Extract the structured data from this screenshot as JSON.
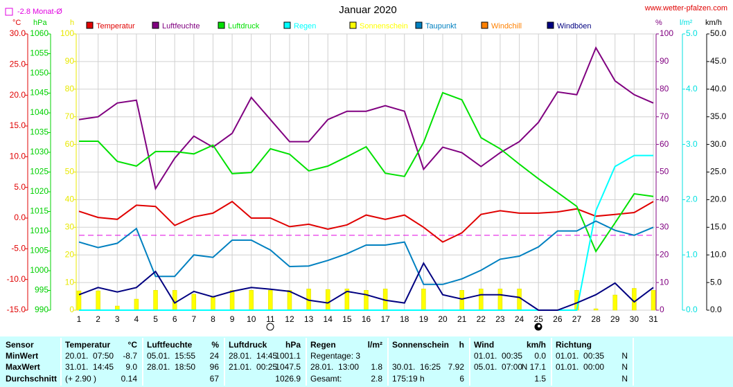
{
  "chart_data": {
    "type": "line",
    "title": "Januar 2020",
    "source": "www.wetter-pfalzen.com",
    "mean": {
      "value": -2.8,
      "label": "-2.8 Monat-Ø",
      "color": "#e000e0",
      "axis": 0
    },
    "categories": [
      1,
      2,
      3,
      4,
      5,
      6,
      7,
      8,
      9,
      10,
      11,
      12,
      13,
      14,
      15,
      16,
      17,
      18,
      19,
      20,
      21,
      22,
      23,
      24,
      25,
      26,
      27,
      28,
      29,
      30,
      31
    ],
    "grid": true,
    "axes": [
      {
        "unit": "°C",
        "color": "#e00000",
        "side": "left",
        "lim": [
          -15,
          30
        ],
        "ticks": [
          {
            "value": -15,
            "label": "-15.0"
          },
          {
            "value": -10,
            "label": "-10.0"
          },
          {
            "value": -5,
            "label": "-5.0"
          },
          {
            "value": 0,
            "label": "0.0"
          },
          {
            "value": 5,
            "label": "5.0"
          },
          {
            "value": 10,
            "label": "10.0"
          },
          {
            "value": 15,
            "label": "15.0"
          },
          {
            "value": 20,
            "label": "20.0"
          },
          {
            "value": 25,
            "label": "25.0"
          },
          {
            "value": 30,
            "label": "30.0"
          }
        ]
      },
      {
        "unit": "hPa",
        "color": "#00d000",
        "side": "left",
        "lim": [
          990,
          1060
        ],
        "ticks": [
          990,
          995,
          1000,
          1005,
          1010,
          1015,
          1020,
          1025,
          1030,
          1035,
          1040,
          1045,
          1050,
          1055,
          1060
        ]
      },
      {
        "unit": "h",
        "color": "#e8e800",
        "side": "left",
        "lim": [
          0,
          100
        ],
        "ticks": [
          0,
          10,
          20,
          30,
          40,
          50,
          60,
          70,
          80,
          90,
          100
        ]
      },
      {
        "unit": "%",
        "color": "#800080",
        "side": "right",
        "lim": [
          0,
          100
        ],
        "grid": true,
        "ticks": [
          0,
          10,
          20,
          30,
          40,
          50,
          60,
          70,
          80,
          90,
          100
        ]
      },
      {
        "unit": "l/m²",
        "color": "#00e0e0",
        "side": "right",
        "lim": [
          0,
          5
        ],
        "ticks": [
          {
            "value": 0,
            "label": "0.0"
          },
          {
            "value": 1,
            "label": "1.0"
          },
          {
            "value": 2,
            "label": "2.0"
          },
          {
            "value": 3,
            "label": "3.0"
          },
          {
            "value": 4,
            "label": "4.0"
          },
          {
            "value": 5,
            "label": "5.0"
          }
        ]
      },
      {
        "unit": "km/h",
        "color": "#000000",
        "side": "right",
        "lim": [
          0,
          50
        ],
        "ticks": [
          {
            "value": 0,
            "label": "0.0"
          },
          {
            "value": 5,
            "label": "5.0"
          },
          {
            "value": 10,
            "label": "10.0"
          },
          {
            "value": 15,
            "label": "15.0"
          },
          {
            "value": 20,
            "label": "20.0"
          },
          {
            "value": 25,
            "label": "25.0"
          },
          {
            "value": 30,
            "label": "30.0"
          },
          {
            "value": 35,
            "label": "35.0"
          },
          {
            "value": 40,
            "label": "40.0"
          },
          {
            "value": 45,
            "label": "45.0"
          },
          {
            "value": 50,
            "label": "50.0"
          }
        ]
      }
    ],
    "series": [
      {
        "name": "Temperatur",
        "color": "#e00000",
        "axis": 0,
        "type": "line",
        "values": [
          1.1,
          0.1,
          -0.2,
          2.1,
          1.9,
          -1.2,
          0.2,
          0.8,
          2.7,
          0.0,
          0.0,
          -1.4,
          -1.0,
          -1.8,
          -1.1,
          0.5,
          -0.2,
          0.5,
          -1.5,
          -3.9,
          -2.4,
          0.6,
          1.2,
          0.8,
          0.8,
          1.0,
          1.5,
          0.3,
          0.6,
          0.9,
          2.7
        ]
      },
      {
        "name": "Luftfeuchte",
        "color": "#800080",
        "axis": 3,
        "type": "line",
        "values": [
          69,
          70,
          75,
          76,
          44,
          55,
          63,
          59,
          64,
          77,
          69,
          61,
          61,
          69,
          72,
          72,
          74,
          72,
          51,
          59,
          57,
          52,
          57,
          61,
          68,
          79,
          78,
          95,
          83,
          78,
          75
        ]
      },
      {
        "name": "Luftdruck",
        "color": "#00e000",
        "axis": 1,
        "type": "line",
        "values": [
          1032.8,
          1032.8,
          1027.7,
          1026.5,
          1030.2,
          1030.2,
          1029.6,
          1031.8,
          1024.6,
          1024.9,
          1030.9,
          1029.5,
          1025.3,
          1026.5,
          1028.9,
          1031.4,
          1024.7,
          1023.9,
          1032.5,
          1045.1,
          1043.3,
          1033.7,
          1030.9,
          1027.0,
          1023.3,
          1019.8,
          1016.3,
          1004.9,
          1012.1,
          1019.5,
          1018.8
        ]
      },
      {
        "name": "Regen",
        "color": "#00ffff",
        "axis": 4,
        "type": "line",
        "values": [
          0,
          0,
          0,
          0,
          0,
          0,
          0,
          0,
          0,
          0,
          0,
          0,
          0,
          0,
          0,
          0,
          0,
          0,
          0,
          0,
          0,
          0,
          0,
          0,
          0,
          0,
          0,
          1.8,
          2.6,
          2.8,
          2.8
        ]
      },
      {
        "name": "Sonnenschein",
        "color": "#ffff00",
        "axis": 2,
        "type": "bar",
        "values": [
          7.0,
          7.0,
          1.5,
          4.0,
          7.2,
          7.2,
          5.8,
          4.8,
          7.2,
          7.2,
          7.2,
          7.2,
          7.7,
          7.5,
          7.7,
          7.2,
          7.7,
          0,
          7.7,
          0,
          7.2,
          7.7,
          7.7,
          7.7,
          0,
          0,
          7.2,
          0.5,
          5.5,
          7.9,
          7.2
        ]
      },
      {
        "name": "Taupunkt",
        "color": "#0080c0",
        "axis": 0,
        "type": "line",
        "values": [
          -3.9,
          -4.8,
          -4.1,
          -1.7,
          -9.5,
          -9.5,
          -6.0,
          -6.4,
          -3.6,
          -3.6,
          -5.2,
          -7.9,
          -7.8,
          -6.9,
          -5.8,
          -4.4,
          -4.4,
          -3.9,
          -10.8,
          -10.8,
          -9.9,
          -8.5,
          -6.7,
          -6.2,
          -4.7,
          -2.1,
          -2.1,
          -0.5,
          -2.0,
          -2.8,
          -1.5
        ]
      },
      {
        "name": "Windchill",
        "color": "#ff8000",
        "axis": 0,
        "type": "line",
        "values": [
          null,
          null,
          null,
          null,
          null,
          null,
          null,
          null,
          null,
          null,
          null,
          null,
          null,
          null,
          null,
          null,
          null,
          null,
          null,
          null,
          null,
          null,
          null,
          null,
          null,
          null,
          null,
          null,
          null,
          null,
          null
        ]
      },
      {
        "name": "Windböen",
        "color": "#000080",
        "axis": 5,
        "type": "line",
        "values": [
          2.8,
          4.1,
          3.3,
          4.1,
          7.0,
          1.3,
          3.4,
          2.4,
          3.4,
          4.1,
          3.8,
          3.4,
          1.8,
          1.3,
          3.4,
          2.8,
          1.8,
          1.3,
          8.5,
          2.8,
          2.0,
          2.8,
          2.8,
          2.3,
          0,
          0,
          1.3,
          2.8,
          4.9,
          1.5,
          4.1
        ]
      }
    ]
  },
  "table": {
    "header": [
      {
        "label": "Sensor"
      },
      {
        "label": "Temperatur",
        "unit": "°C"
      },
      {
        "label": "Luftfeuchte",
        "unit": "%"
      },
      {
        "label": "Luftdruck",
        "unit": "hPa"
      },
      {
        "label": "Regen",
        "unit": "l/m²"
      },
      {
        "label": "Sonnenschein",
        "unit": "h"
      },
      {
        "label": "Wind",
        "unit": "km/h"
      },
      {
        "label": "Richtung"
      }
    ],
    "rows": [
      {
        "label": "MinWert",
        "cells": [
          {
            "left": "20.01.  07:50",
            "right": "-8.7"
          },
          {
            "left": "05.01.  15:55",
            "right": "24"
          },
          {
            "left": "28.01.  14:45",
            "right": "1001.1"
          },
          {
            "left": "Regentage: 3"
          },
          {},
          {
            "left": "01.01.  00:35",
            "right": "0.0"
          },
          {
            "left": "01.01.  00:35",
            "right": "N"
          }
        ]
      },
      {
        "label": "MaxWert",
        "cells": [
          {
            "left": "31.01.  14:45",
            "right": "9.0"
          },
          {
            "left": "28.01.  18:50",
            "right": "96"
          },
          {
            "left": "21.01.  00:25",
            "right": "1047.5"
          },
          {
            "left": "28.01.  13:00",
            "right": "1.8"
          },
          {
            "left": "30.01.  16:25",
            "right": "7.92"
          },
          {
            "left": "05.01.  07:00",
            "right": "N 17.1"
          },
          {
            "left": "01.01.  00:00",
            "right": "N"
          }
        ]
      },
      {
        "label": "Durchschnitt",
        "cells": [
          {
            "left": "(+ 2.90 )",
            "right": "0.14"
          },
          {
            "right": "67"
          },
          {
            "right": "1026.9"
          },
          {
            "left": "Gesamt:",
            "right": "2.8"
          },
          {
            "left": "175:19 h",
            "right": "6"
          },
          {
            "right": "1.5"
          },
          {
            "right": "N"
          }
        ]
      }
    ]
  }
}
